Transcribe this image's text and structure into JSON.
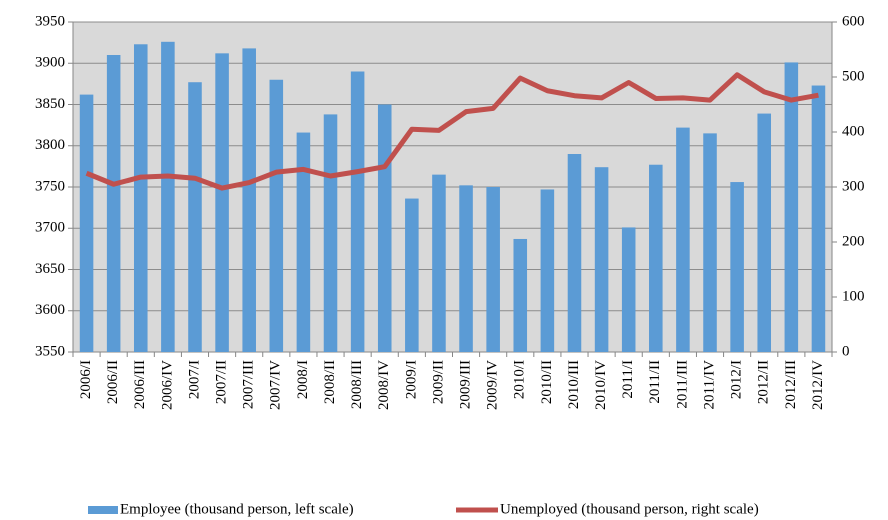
{
  "chart_data": {
    "type": "bar-line",
    "categories": [
      "2006/I",
      "2006/II",
      "2006/III",
      "2006/IV",
      "2007/I",
      "2007/II",
      "2007/III",
      "2007/IV",
      "2008/I",
      "2008/II",
      "2008/III",
      "2008/IV",
      "2009/I",
      "2009/II",
      "2009/III",
      "2009/IV",
      "2010/I",
      "2010/II",
      "2010/III",
      "2010/IV",
      "2011/I",
      "2011/II",
      "2011/III",
      "2011/IV",
      "2012/I",
      "2012/II",
      "2012/III",
      "2012/IV"
    ],
    "series": [
      {
        "name": "Employee (thousand person, left scale)",
        "type": "bar",
        "color": "#5b9bd5",
        "values": [
          3862,
          3910,
          3923,
          3926,
          3877,
          3912,
          3918,
          3880,
          3816,
          3838,
          3890,
          3850,
          3736,
          3765,
          3752,
          3750,
          3687,
          3747,
          3790,
          3774,
          3701,
          3777,
          3822,
          3815,
          3756,
          3839,
          3901,
          3873
        ]
      },
      {
        "name": "Unemployed (thousand person, right scale)",
        "type": "line",
        "axis": "y2",
        "color": "#c0504d",
        "values": [
          325,
          305,
          318,
          320,
          316,
          298,
          308,
          327,
          332,
          320,
          328,
          337,
          405,
          403,
          437,
          443,
          498,
          475,
          466,
          462,
          490,
          461,
          462,
          458,
          504,
          473,
          458,
          467
        ]
      }
    ],
    "ylim": [
      3550,
      3950
    ],
    "yticks": [
      3550,
      3600,
      3650,
      3700,
      3750,
      3800,
      3850,
      3900,
      3950
    ],
    "y2lim": [
      0,
      600
    ],
    "y2ticks": [
      0,
      100,
      200,
      300,
      400,
      500,
      600
    ],
    "grid": true,
    "legend": "bottom"
  }
}
